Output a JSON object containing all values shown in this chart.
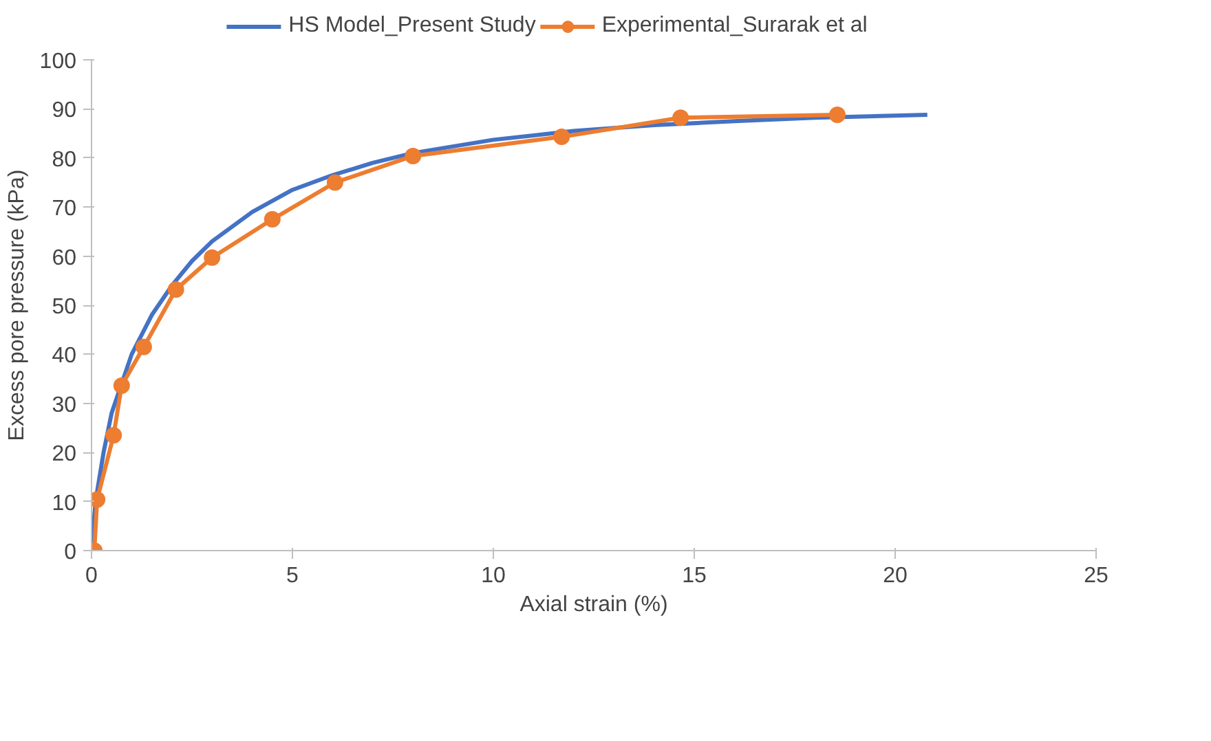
{
  "chart_data": {
    "type": "line",
    "xlabel": "Axial strain (%)",
    "ylabel": "Excess pore pressure (kPa)",
    "xlim": [
      0,
      25
    ],
    "xticks": [
      0,
      5,
      10,
      15,
      20,
      25
    ],
    "ylim": [
      0,
      100
    ],
    "yticks": [
      0,
      10,
      20,
      30,
      40,
      50,
      60,
      70,
      80,
      90,
      100
    ],
    "grid": false,
    "legend": "top",
    "series": [
      {
        "name": "HS Model_Present Study",
        "color": "#4472c4",
        "marker": "none",
        "x": [
          0,
          0.1,
          0.3,
          0.5,
          1.0,
          1.5,
          2.0,
          2.5,
          3,
          4,
          5,
          6,
          7,
          8,
          10,
          12,
          14,
          16,
          18,
          20.8
        ],
        "values": [
          0,
          10,
          20,
          28,
          40,
          48,
          54,
          59,
          63,
          69,
          73.5,
          76.5,
          79,
          81,
          83.7,
          85.5,
          86.7,
          87.5,
          88.2,
          88.8
        ]
      },
      {
        "name": "Experimental_Surarak et al",
        "color": "#ed7d31",
        "marker": "circle",
        "x": [
          0.07,
          0.14,
          0.55,
          0.75,
          1.3,
          2.1,
          3.0,
          4.5,
          6.06,
          8.0,
          11.7,
          14.66,
          18.56
        ],
        "values": [
          0,
          10.4,
          23.5,
          33.6,
          41.5,
          53.2,
          59.7,
          67.5,
          75,
          80.4,
          84.3,
          88.2,
          88.8
        ]
      }
    ]
  }
}
